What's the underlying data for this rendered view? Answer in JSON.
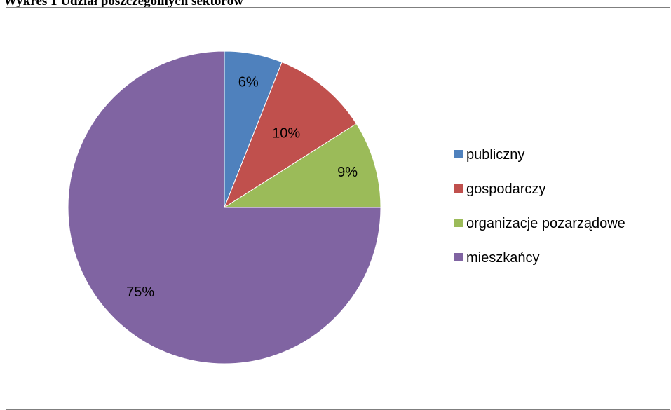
{
  "caption": "Wykres 1 Udział poszczególnych sektorów",
  "chart_data": {
    "type": "pie",
    "title": "",
    "categories": [
      "publiczny",
      "gospodarczy",
      "organizacje pozarządowe",
      "mieszkańcy"
    ],
    "values": [
      6,
      10,
      9,
      75
    ],
    "labels": [
      "6%",
      "10%",
      "9%",
      "75%"
    ],
    "colors": [
      "#4f81bd",
      "#c0504d",
      "#9bbb59",
      "#8064a2"
    ],
    "legend_position": "right"
  }
}
